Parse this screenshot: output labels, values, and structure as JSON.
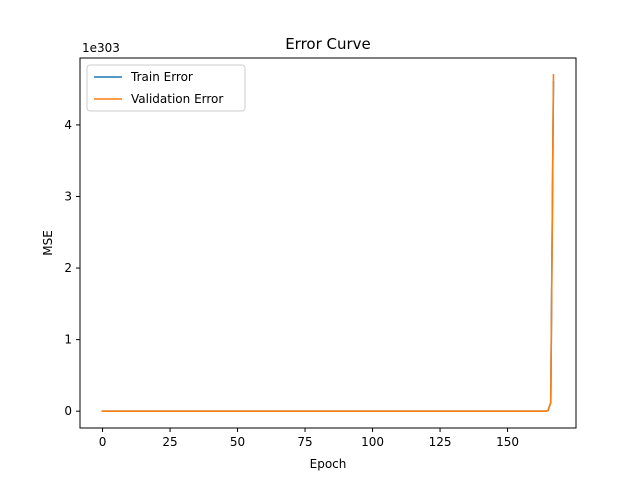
{
  "chart_data": {
    "type": "line",
    "title": "Error Curve",
    "xlabel": "Epoch",
    "ylabel": "MSE",
    "y_offset_text": "1e303",
    "xlim": [
      -8.35,
      175.35
    ],
    "ylim": [
      -0.235,
      4.935
    ],
    "x_ticks": [
      0,
      25,
      50,
      75,
      100,
      125,
      150
    ],
    "y_ticks": [
      0,
      1,
      2,
      3,
      4
    ],
    "grid": false,
    "legend_position": "upper-left",
    "series": [
      {
        "name": "Train Error",
        "color": "#1f77b4",
        "x": [
          0,
          25,
          50,
          75,
          100,
          125,
          150,
          164,
          165,
          166,
          167
        ],
        "y": [
          0,
          0,
          0,
          0,
          0,
          0,
          0,
          0,
          0.01,
          0.12,
          4.6
        ]
      },
      {
        "name": "Validation Error",
        "color": "#ff7f0e",
        "x": [
          0,
          25,
          50,
          75,
          100,
          125,
          150,
          164,
          165,
          166,
          167
        ],
        "y": [
          0,
          0,
          0,
          0,
          0,
          0,
          0,
          0,
          0.01,
          0.12,
          4.7
        ]
      }
    ]
  }
}
